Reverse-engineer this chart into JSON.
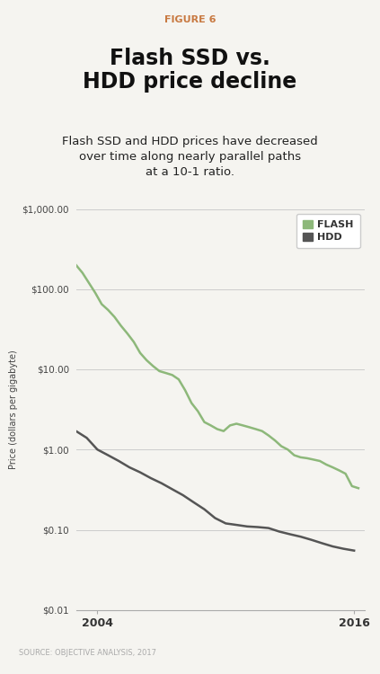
{
  "figure_label": "FIGURE 6",
  "title": "Flash SSD vs.\nHDD price decline",
  "subtitle": "Flash SSD and HDD prices have decreased\nover time along nearly parallel paths\nat a 10-1 ratio.",
  "ylabel": "Price (dollars per gigabyte)",
  "source": "SOURCE: OBJECTIVE ANALYSIS, 2017",
  "flash_x": [
    2003.0,
    2003.3,
    2003.6,
    2003.9,
    2004.2,
    2004.5,
    2004.8,
    2005.1,
    2005.4,
    2005.7,
    2006.0,
    2006.3,
    2006.6,
    2006.9,
    2007.2,
    2007.5,
    2007.8,
    2008.1,
    2008.4,
    2008.7,
    2009.0,
    2009.3,
    2009.6,
    2009.9,
    2010.2,
    2010.5,
    2010.8,
    2011.1,
    2011.4,
    2011.7,
    2012.0,
    2012.3,
    2012.6,
    2012.9,
    2013.2,
    2013.5,
    2013.8,
    2014.1,
    2014.4,
    2014.7,
    2015.0,
    2015.3,
    2015.6,
    2015.9,
    2016.2
  ],
  "flash_y": [
    200,
    160,
    120,
    90,
    65,
    55,
    45,
    35,
    28,
    22,
    16,
    13,
    11,
    9.5,
    9.0,
    8.5,
    7.5,
    5.5,
    3.8,
    3.0,
    2.2,
    2.0,
    1.8,
    1.7,
    2.0,
    2.1,
    2.0,
    1.9,
    1.8,
    1.7,
    1.5,
    1.3,
    1.1,
    1.0,
    0.85,
    0.8,
    0.78,
    0.75,
    0.72,
    0.65,
    0.6,
    0.55,
    0.5,
    0.35,
    0.33
  ],
  "hdd_x": [
    2003.0,
    2003.5,
    2004.0,
    2004.5,
    2005.0,
    2005.5,
    2006.0,
    2006.5,
    2007.0,
    2007.5,
    2008.0,
    2008.5,
    2009.0,
    2009.5,
    2010.0,
    2010.5,
    2011.0,
    2011.5,
    2012.0,
    2012.5,
    2013.0,
    2013.5,
    2014.0,
    2014.5,
    2015.0,
    2015.5,
    2016.0
  ],
  "hdd_y": [
    1.7,
    1.4,
    1.0,
    0.85,
    0.72,
    0.6,
    0.52,
    0.44,
    0.38,
    0.32,
    0.27,
    0.22,
    0.18,
    0.14,
    0.12,
    0.115,
    0.11,
    0.108,
    0.105,
    0.095,
    0.088,
    0.082,
    0.075,
    0.068,
    0.062,
    0.058,
    0.055
  ],
  "flash_color": "#8db87a",
  "hdd_color": "#555555",
  "yticks": [
    0.01,
    0.1,
    1.0,
    10.0,
    100.0,
    1000.0
  ],
  "ytick_labels": [
    "$0.01",
    "$0.10",
    "$1.00",
    "$10.00",
    "$100.00",
    "$1,000.00"
  ],
  "xticks": [
    2004,
    2016
  ],
  "xlim": [
    2003.0,
    2016.5
  ],
  "ylim": [
    0.01,
    1000.0
  ],
  "figure_label_color": "#c87941",
  "background_color": "#f5f4f0",
  "title_bg_color": "#ffffff",
  "grid_color": "#cccccc",
  "title_fontsize": 17,
  "subtitle_fontsize": 9.5,
  "figure_label_fontsize": 8,
  "ytick_fontsize": 7.5,
  "xtick_fontsize": 9,
  "ylabel_fontsize": 7,
  "legend_fontsize": 8,
  "source_fontsize": 6
}
